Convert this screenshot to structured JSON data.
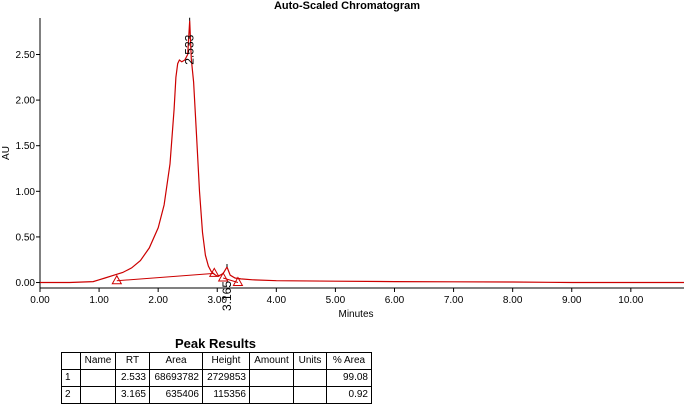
{
  "chart_data": {
    "type": "line",
    "title": "Auto-Scaled Chromatogram",
    "xlabel": "Minutes",
    "ylabel": "AU",
    "xlim": [
      0.0,
      10.9
    ],
    "ylim": [
      -0.06,
      2.9
    ],
    "x_ticks": [
      "0.00",
      "1.00",
      "2.00",
      "3.00",
      "4.00",
      "5.00",
      "6.00",
      "7.00",
      "8.00",
      "9.00",
      "10.00"
    ],
    "y_ticks": [
      "0.00",
      "0.50",
      "1.00",
      "1.50",
      "2.00",
      "2.50"
    ],
    "line_color": "#cc0000",
    "baseline_color": "#cc0000",
    "grid": false,
    "series": [
      {
        "x": [
          0.0,
          0.5,
          0.9,
          1.0,
          1.1,
          1.25,
          1.4,
          1.55,
          1.7,
          1.85,
          2.0,
          2.1,
          2.2,
          2.27,
          2.3,
          2.33,
          2.36,
          2.4,
          2.45,
          2.5,
          2.533,
          2.56,
          2.6,
          2.65,
          2.7,
          2.75,
          2.8,
          2.85,
          2.9,
          2.95,
          3.0,
          3.05,
          3.1,
          3.165,
          3.22,
          3.3,
          3.4,
          3.6,
          4.0,
          5.0,
          6.0,
          7.0,
          8.0,
          8.6,
          9.0,
          10.0,
          10.9
        ],
        "y": [
          0.0,
          0.0,
          0.01,
          0.03,
          0.05,
          0.08,
          0.11,
          0.16,
          0.24,
          0.38,
          0.6,
          0.85,
          1.3,
          1.9,
          2.25,
          2.4,
          2.44,
          2.42,
          2.44,
          2.5,
          2.87,
          2.45,
          2.2,
          1.6,
          1.0,
          0.55,
          0.3,
          0.18,
          0.12,
          0.09,
          0.07,
          0.08,
          0.1,
          0.17,
          0.08,
          0.05,
          0.04,
          0.03,
          0.02,
          0.015,
          0.01,
          0.008,
          0.006,
          0.003,
          0.0,
          0.0,
          0.0
        ]
      }
    ],
    "baselines": [
      {
        "x": [
          1.3,
          2.95
        ],
        "y": [
          0.02,
          0.1
        ]
      },
      {
        "x": [
          3.1,
          3.35
        ],
        "y": [
          0.05,
          0.0
        ]
      }
    ],
    "peak_markers": [
      {
        "x": 1.3,
        "y": 0.02
      },
      {
        "x": 2.95,
        "y": 0.1
      },
      {
        "x": 3.1,
        "y": 0.05
      },
      {
        "x": 3.35,
        "y": 0.0
      }
    ],
    "peak_labels": [
      {
        "text": "2.533",
        "x": 2.533,
        "y": 2.87
      },
      {
        "text": "3.165",
        "x": 3.165,
        "y": 0.17
      }
    ]
  },
  "results": {
    "title": "Peak Results",
    "headers": [
      "",
      "Name",
      "RT",
      "Area",
      "Height",
      "Amount",
      "Units",
      "% Area"
    ],
    "rows": [
      [
        "1",
        "",
        "2.533",
        "68693782",
        "2729853",
        "",
        "",
        "99.08"
      ],
      [
        "2",
        "",
        "3.165",
        "635406",
        "115356",
        "",
        "",
        "0.92"
      ]
    ]
  }
}
